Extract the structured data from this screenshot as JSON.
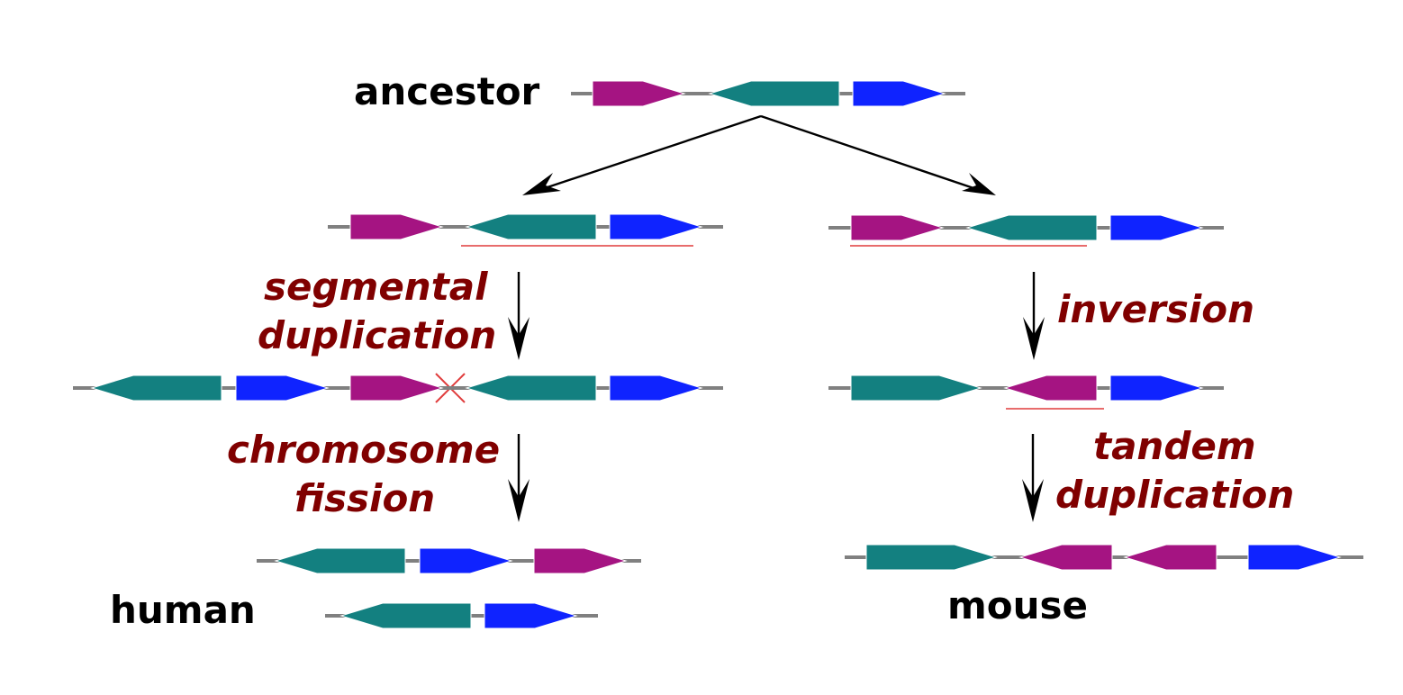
{
  "labels": {
    "ancestor": "ancestor",
    "segmental": "segmental",
    "duplication_1": "duplication",
    "chromosome": "chromosome",
    "fission": "fission",
    "human": "human",
    "inversion": "inversion",
    "tandem": "tandem",
    "duplication_2": "duplication",
    "mouse": "mouse"
  },
  "colors": {
    "magenta_gene": "#a51482",
    "teal_gene": "#138080",
    "blue_gene": "#0f23ff",
    "backbone": "#808080",
    "event_label": "#800000",
    "highlight": "#e03c3c"
  }
}
